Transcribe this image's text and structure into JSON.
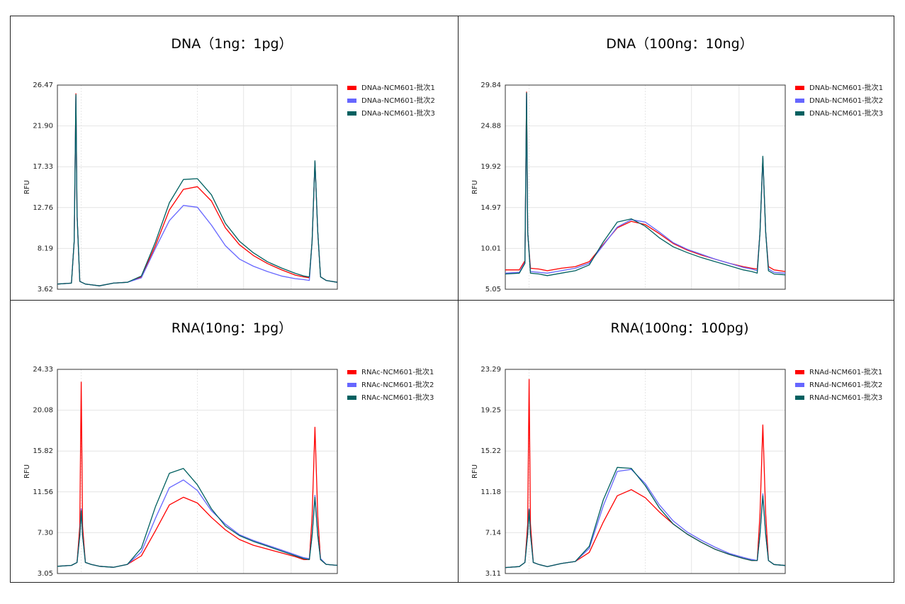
{
  "chart_data": [
    {
      "type": "line",
      "title": "DNA（1ng：1pg）",
      "ylabel": "RFU",
      "yticks": [
        "3.62",
        "8.19",
        "12.76",
        "17.33",
        "21.90",
        "26.47"
      ],
      "ylim": [
        3.62,
        26.47
      ],
      "xlim": [
        0,
        100
      ],
      "grid": true,
      "legend_position": "right",
      "series": [
        {
          "name": "DNAa-NCM601-批次1",
          "color": "#ff0000",
          "x": [
            0,
            5,
            6,
            6.6,
            7,
            8,
            10,
            15,
            20,
            25,
            30,
            35,
            40,
            45,
            50,
            55,
            60,
            65,
            70,
            75,
            80,
            85,
            88,
            90,
            91,
            92,
            93,
            94,
            96,
            100
          ],
          "y": [
            4.2,
            4.3,
            9,
            25.5,
            12,
            4.5,
            4.2,
            4.0,
            4.3,
            4.4,
            5,
            8.5,
            12.5,
            14.8,
            15.1,
            13.5,
            10.5,
            8.6,
            7.4,
            6.5,
            5.8,
            5.2,
            5.0,
            4.9,
            9,
            17.9,
            10,
            5.0,
            4.6,
            4.4
          ]
        },
        {
          "name": "DNAa-NCM601-批次2",
          "color": "#6666ff",
          "x": [
            0,
            5,
            6,
            6.6,
            7,
            8,
            10,
            15,
            20,
            25,
            30,
            35,
            40,
            45,
            50,
            55,
            60,
            65,
            70,
            75,
            80,
            85,
            88,
            90,
            91,
            92,
            93,
            94,
            96,
            100
          ],
          "y": [
            4.2,
            4.3,
            9,
            25.2,
            12,
            4.5,
            4.2,
            4.0,
            4.3,
            4.4,
            4.9,
            8.2,
            11.3,
            13.0,
            12.8,
            10.8,
            8.5,
            7.0,
            6.2,
            5.6,
            5.1,
            4.8,
            4.7,
            4.6,
            9,
            17.9,
            10,
            5.0,
            4.6,
            4.4
          ]
        },
        {
          "name": "DNAa-NCM601-批次3",
          "color": "#006060",
          "x": [
            0,
            5,
            6,
            6.6,
            7,
            8,
            10,
            15,
            20,
            25,
            30,
            35,
            40,
            45,
            50,
            55,
            60,
            65,
            70,
            75,
            80,
            85,
            88,
            90,
            91,
            92,
            93,
            94,
            96,
            100
          ],
          "y": [
            4.2,
            4.3,
            9,
            25.4,
            12,
            4.5,
            4.2,
            4.0,
            4.3,
            4.4,
            5.1,
            8.9,
            13.3,
            15.9,
            16.0,
            14.2,
            11.0,
            9.0,
            7.7,
            6.7,
            6.0,
            5.4,
            5.1,
            5.0,
            9,
            18.0,
            10,
            5.0,
            4.6,
            4.4
          ]
        }
      ]
    },
    {
      "type": "line",
      "title": "DNA（100ng：10ng）",
      "ylabel": "RFU",
      "yticks": [
        "5.05",
        "10.01",
        "14.97",
        "19.92",
        "24.88",
        "29.84"
      ],
      "ylim": [
        5.05,
        29.84
      ],
      "xlim": [
        0,
        100
      ],
      "grid": true,
      "legend_position": "right",
      "series": [
        {
          "name": "DNAb-NCM601-批次1",
          "color": "#ff0000",
          "x": [
            0,
            5,
            7,
            7.6,
            8,
            9,
            12,
            15,
            20,
            25,
            30,
            35,
            40,
            45,
            50,
            55,
            60,
            65,
            70,
            75,
            80,
            85,
            88,
            90,
            91,
            92,
            93,
            94,
            96,
            100
          ],
          "y": [
            7.4,
            7.4,
            8.5,
            29.0,
            12,
            7.6,
            7.5,
            7.3,
            7.6,
            7.8,
            8.4,
            10.5,
            12.5,
            13.3,
            12.9,
            11.8,
            10.6,
            9.8,
            9.2,
            8.7,
            8.2,
            7.8,
            7.6,
            7.5,
            12,
            21.0,
            12,
            7.8,
            7.4,
            7.2
          ]
        },
        {
          "name": "DNAb-NCM601-批次2",
          "color": "#6666ff",
          "x": [
            0,
            5,
            7,
            7.6,
            8,
            9,
            12,
            15,
            20,
            25,
            30,
            35,
            40,
            45,
            50,
            55,
            60,
            65,
            70,
            75,
            80,
            85,
            88,
            90,
            91,
            92,
            93,
            94,
            96,
            100
          ],
          "y": [
            7.0,
            7.1,
            8.3,
            28.8,
            12,
            7.2,
            7.1,
            7.0,
            7.3,
            7.6,
            8.2,
            10.4,
            12.6,
            13.5,
            13.2,
            12.0,
            10.7,
            9.9,
            9.3,
            8.7,
            8.2,
            7.7,
            7.5,
            7.3,
            12,
            21.0,
            12,
            7.5,
            7.1,
            7.0
          ]
        },
        {
          "name": "DNAb-NCM601-批次3",
          "color": "#006060",
          "x": [
            0,
            5,
            7,
            7.6,
            8,
            9,
            12,
            15,
            20,
            25,
            30,
            35,
            40,
            45,
            50,
            55,
            60,
            65,
            70,
            75,
            80,
            85,
            88,
            90,
            91,
            92,
            93,
            94,
            96,
            100
          ],
          "y": [
            6.9,
            7.0,
            8.2,
            28.9,
            12,
            7.0,
            6.9,
            6.7,
            7.0,
            7.3,
            8.0,
            10.8,
            13.2,
            13.6,
            12.7,
            11.3,
            10.2,
            9.5,
            8.9,
            8.4,
            7.9,
            7.4,
            7.2,
            7.0,
            12,
            21.2,
            12,
            7.3,
            6.9,
            6.8
          ]
        }
      ]
    },
    {
      "type": "line",
      "title": "RNA(10ng：1pg）",
      "ylabel": "RFU",
      "yticks": [
        "3.05",
        "7.30",
        "11.56",
        "15.82",
        "20.08",
        "24.33"
      ],
      "ylim": [
        3.05,
        24.33
      ],
      "xlim": [
        0,
        100
      ],
      "grid": true,
      "legend_position": "right",
      "series": [
        {
          "name": "RNAc-NCM601-批次1",
          "color": "#ff0000",
          "x": [
            0,
            5,
            7,
            8,
            8.5,
            9,
            10,
            12,
            15,
            20,
            25,
            30,
            35,
            40,
            45,
            50,
            55,
            60,
            65,
            70,
            75,
            80,
            85,
            88,
            90,
            91,
            92,
            93,
            94,
            96,
            100
          ],
          "y": [
            3.8,
            3.9,
            4.2,
            8,
            23.0,
            8,
            4.2,
            4.0,
            3.8,
            3.7,
            4.0,
            4.9,
            7.5,
            10.2,
            11.0,
            10.4,
            8.9,
            7.6,
            6.6,
            6.0,
            5.6,
            5.2,
            4.8,
            4.5,
            4.5,
            9,
            18.3,
            9,
            4.5,
            4.0,
            3.9
          ]
        },
        {
          "name": "RNAc-NCM601-批次2",
          "color": "#6666ff",
          "x": [
            0,
            5,
            7,
            8,
            8.5,
            9,
            10,
            12,
            15,
            20,
            25,
            30,
            35,
            40,
            45,
            50,
            55,
            60,
            65,
            70,
            75,
            80,
            85,
            88,
            90,
            91,
            92,
            93,
            94,
            96,
            100
          ],
          "y": [
            3.8,
            3.9,
            4.2,
            7,
            9.8,
            7,
            4.2,
            4.0,
            3.8,
            3.7,
            4.0,
            5.3,
            8.8,
            12.0,
            12.8,
            11.7,
            9.6,
            8.2,
            7.1,
            6.5,
            6.0,
            5.5,
            5.0,
            4.7,
            4.6,
            7,
            11.2,
            7,
            4.6,
            4.0,
            3.9
          ]
        },
        {
          "name": "RNAc-NCM601-批次3",
          "color": "#006060",
          "x": [
            0,
            5,
            7,
            8,
            8.5,
            9,
            10,
            12,
            15,
            20,
            25,
            30,
            35,
            40,
            45,
            50,
            55,
            60,
            65,
            70,
            75,
            80,
            85,
            88,
            90,
            91,
            92,
            93,
            94,
            96,
            100
          ],
          "y": [
            3.8,
            3.9,
            4.2,
            7,
            9.6,
            7,
            4.2,
            4.0,
            3.8,
            3.7,
            4.0,
            5.7,
            10.0,
            13.5,
            14.0,
            12.3,
            9.8,
            8.0,
            7.0,
            6.4,
            5.9,
            5.4,
            4.9,
            4.6,
            4.5,
            7,
            11.0,
            7,
            4.5,
            4.0,
            3.9
          ]
        }
      ]
    },
    {
      "type": "line",
      "title": "RNA(100ng：100pg)",
      "ylabel": "RFU",
      "yticks": [
        "3.11",
        "7.14",
        "11.18",
        "15.22",
        "19.25",
        "23.29"
      ],
      "ylim": [
        3.11,
        23.29
      ],
      "xlim": [
        0,
        100
      ],
      "grid": true,
      "legend_position": "right",
      "series": [
        {
          "name": "RNAd-NCM601-批次1",
          "color": "#ff0000",
          "x": [
            0,
            5,
            7,
            8,
            8.5,
            9,
            10,
            12,
            15,
            20,
            25,
            30,
            35,
            40,
            45,
            50,
            55,
            60,
            65,
            70,
            75,
            80,
            85,
            88,
            90,
            91,
            92,
            93,
            94,
            96,
            100
          ],
          "y": [
            3.7,
            3.8,
            4.2,
            8,
            22.3,
            8,
            4.2,
            4.0,
            3.8,
            4.1,
            4.3,
            5.2,
            8.2,
            10.8,
            11.4,
            10.6,
            9.2,
            8.0,
            7.0,
            6.2,
            5.5,
            5.0,
            4.6,
            4.4,
            4.4,
            9,
            17.8,
            9,
            4.4,
            4.0,
            3.9
          ]
        },
        {
          "name": "RNAd-NCM601-批次2",
          "color": "#6666ff",
          "x": [
            0,
            5,
            7,
            8,
            8.5,
            9,
            10,
            12,
            15,
            20,
            25,
            30,
            35,
            40,
            45,
            50,
            55,
            60,
            65,
            70,
            75,
            80,
            85,
            88,
            90,
            91,
            92,
            93,
            94,
            96,
            100
          ],
          "y": [
            3.7,
            3.8,
            4.2,
            7,
            9.5,
            7,
            4.2,
            4.0,
            3.8,
            4.1,
            4.3,
            5.6,
            9.8,
            13.2,
            13.4,
            12.0,
            9.9,
            8.3,
            7.2,
            6.4,
            5.7,
            5.1,
            4.7,
            4.5,
            4.4,
            7,
            11.0,
            7,
            4.4,
            4.0,
            3.9
          ]
        },
        {
          "name": "RNAd-NCM601-批次3",
          "color": "#006060",
          "x": [
            0,
            5,
            7,
            8,
            8.5,
            9,
            10,
            12,
            15,
            20,
            25,
            30,
            35,
            40,
            45,
            50,
            55,
            60,
            65,
            70,
            75,
            80,
            85,
            88,
            90,
            91,
            92,
            93,
            94,
            96,
            100
          ],
          "y": [
            3.7,
            3.8,
            4.2,
            7,
            9.4,
            7,
            4.2,
            4.0,
            3.8,
            4.1,
            4.3,
            5.8,
            10.4,
            13.6,
            13.5,
            11.8,
            9.6,
            8.0,
            7.0,
            6.2,
            5.5,
            5.0,
            4.6,
            4.4,
            4.4,
            7,
            10.8,
            7,
            4.4,
            4.0,
            3.9
          ]
        }
      ]
    }
  ]
}
